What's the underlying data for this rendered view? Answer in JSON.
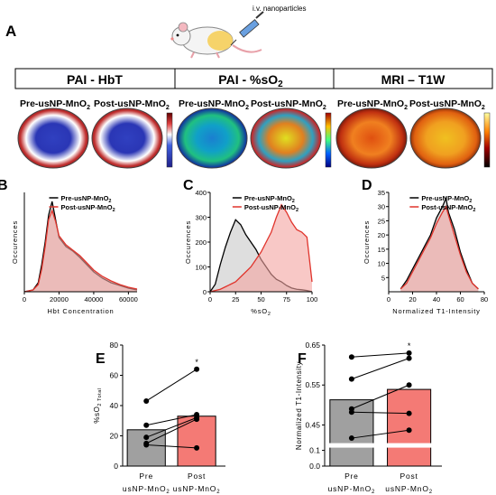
{
  "figure": {
    "header_text": "i.v. nanoparticles",
    "panel_labels": [
      "A",
      "B",
      "C",
      "D",
      "E",
      "F"
    ],
    "sections": [
      {
        "title": "PAI - HbT",
        "images": [
          "Pre-usNP-MnO",
          "Post-usNP-MnO"
        ]
      },
      {
        "title": "PAI - %sO",
        "images": [
          "Pre-usNP-MnO",
          "Post-usNP-MnO"
        ]
      },
      {
        "title": "MRI – T1W",
        "images": [
          "Pre-usNP-MnO",
          "Post-usNP-MnO"
        ]
      }
    ],
    "subscript": "2",
    "colors": {
      "pre": "#000000",
      "post": "#e0342c",
      "pre_fill": "#c8c8c8",
      "post_fill": "#f4a3a0",
      "bar_pre": "#a0a0a0",
      "bar_post": "#f47a75"
    }
  },
  "chart_data": [
    {
      "type": "area",
      "panel": "B",
      "xlabel": "Hbt Concentration",
      "ylabel": "Occurences",
      "xlim": [
        0,
        65000
      ],
      "x_ticks": [
        "0",
        "20000",
        "40000",
        "60000"
      ],
      "legend": "top-right",
      "series": [
        {
          "name": "Pre-usNP-MnO",
          "x": [
            0,
            5000,
            8000,
            10000,
            12000,
            14000,
            16000,
            18000,
            20000,
            24000,
            28000,
            32000,
            36000,
            40000,
            45000,
            50000,
            55000,
            60000,
            65000
          ],
          "y": [
            0,
            2,
            10,
            30,
            55,
            85,
            100,
            80,
            60,
            50,
            45,
            38,
            30,
            22,
            15,
            10,
            7,
            4,
            2
          ]
        },
        {
          "name": "Post-usNP-MnO",
          "x": [
            0,
            5000,
            8000,
            10000,
            12000,
            14000,
            16000,
            18000,
            20000,
            24000,
            28000,
            32000,
            36000,
            40000,
            45000,
            50000,
            55000,
            60000,
            65000
          ],
          "y": [
            0,
            2,
            8,
            25,
            50,
            80,
            90,
            78,
            62,
            52,
            46,
            40,
            32,
            24,
            17,
            12,
            8,
            5,
            3
          ]
        }
      ]
    },
    {
      "type": "area",
      "panel": "C",
      "xlabel": "%sO",
      "ylabel": "Occurences",
      "xlim": [
        0,
        100
      ],
      "ylim": [
        0,
        400
      ],
      "x_ticks": [
        "0",
        "25",
        "50",
        "75",
        "100"
      ],
      "y_ticks": [
        "0",
        "100",
        "200",
        "300",
        "400"
      ],
      "legend": "top-right",
      "series": [
        {
          "name": "Pre-usNP-MnO",
          "x": [
            0,
            5,
            10,
            15,
            20,
            25,
            30,
            35,
            40,
            45,
            50,
            55,
            60,
            65,
            70,
            75,
            80,
            85,
            90,
            95,
            100
          ],
          "y": [
            0,
            30,
            110,
            180,
            240,
            290,
            270,
            230,
            200,
            170,
            130,
            100,
            70,
            50,
            40,
            25,
            15,
            10,
            8,
            5,
            0
          ]
        },
        {
          "name": "Post-usNP-MnO",
          "x": [
            0,
            5,
            10,
            15,
            20,
            25,
            30,
            35,
            40,
            45,
            50,
            55,
            60,
            65,
            70,
            75,
            80,
            85,
            90,
            95,
            100
          ],
          "y": [
            0,
            5,
            10,
            20,
            30,
            40,
            60,
            80,
            100,
            130,
            160,
            200,
            240,
            300,
            350,
            320,
            280,
            250,
            240,
            220,
            40
          ]
        }
      ]
    },
    {
      "type": "area",
      "panel": "D",
      "xlabel": "Normalized T1-Intensity",
      "ylabel": "Occurences",
      "xlim": [
        0,
        80
      ],
      "ylim": [
        0,
        35
      ],
      "x_ticks": [
        "0",
        "20",
        "40",
        "60",
        "80"
      ],
      "y_ticks": [
        "5",
        "10",
        "15",
        "20",
        "25",
        "30",
        "35"
      ],
      "legend": "top-right",
      "series": [
        {
          "name": "Pre-usNP-MnO",
          "x": [
            10,
            15,
            20,
            25,
            30,
            35,
            40,
            45,
            48,
            50,
            55,
            60,
            65,
            70,
            75
          ],
          "y": [
            1,
            4,
            8,
            12,
            16,
            20,
            26,
            30,
            33,
            28,
            22,
            14,
            8,
            3,
            1
          ]
        },
        {
          "name": "Post-usNP-MnO",
          "x": [
            10,
            15,
            20,
            25,
            30,
            35,
            40,
            45,
            48,
            50,
            55,
            60,
            65,
            70,
            75
          ],
          "y": [
            1,
            3,
            7,
            11,
            15,
            19,
            24,
            28,
            30,
            27,
            20,
            13,
            7,
            3,
            1
          ]
        }
      ]
    },
    {
      "type": "bar",
      "panel": "E",
      "ylabel": "%sO",
      "ylabel_sub": "2 Total",
      "ylim": [
        0,
        80
      ],
      "y_ticks": [
        "0",
        "20",
        "40",
        "60",
        "80"
      ],
      "categories": [
        "Pre",
        "Post"
      ],
      "category_sub": [
        "usNP-MnO",
        "usNP-MnO"
      ],
      "values": [
        24,
        33
      ],
      "paired": [
        [
          43,
          64
        ],
        [
          27,
          34
        ],
        [
          19,
          32
        ],
        [
          15,
          31
        ],
        [
          14,
          12
        ]
      ],
      "significance": "*"
    },
    {
      "type": "bar",
      "panel": "F",
      "ylabel": "Normalized T1-Intensity",
      "ylim": [
        0,
        0.65
      ],
      "y_ticks": [
        "0.0",
        "0.1",
        "0.45",
        "0.55",
        "0.65"
      ],
      "axis_break": [
        0.1,
        0.4
      ],
      "categories": [
        "Pre",
        "Post"
      ],
      "category_sub": [
        "usNP-MnO",
        "usNP-MnO"
      ],
      "values": [
        0.513,
        0.539
      ],
      "paired": [
        [
          0.62,
          0.63
        ],
        [
          0.565,
          0.617
        ],
        [
          0.49,
          0.55
        ],
        [
          0.482,
          0.479
        ],
        [
          0.417,
          0.437
        ]
      ],
      "significance": "*"
    }
  ]
}
